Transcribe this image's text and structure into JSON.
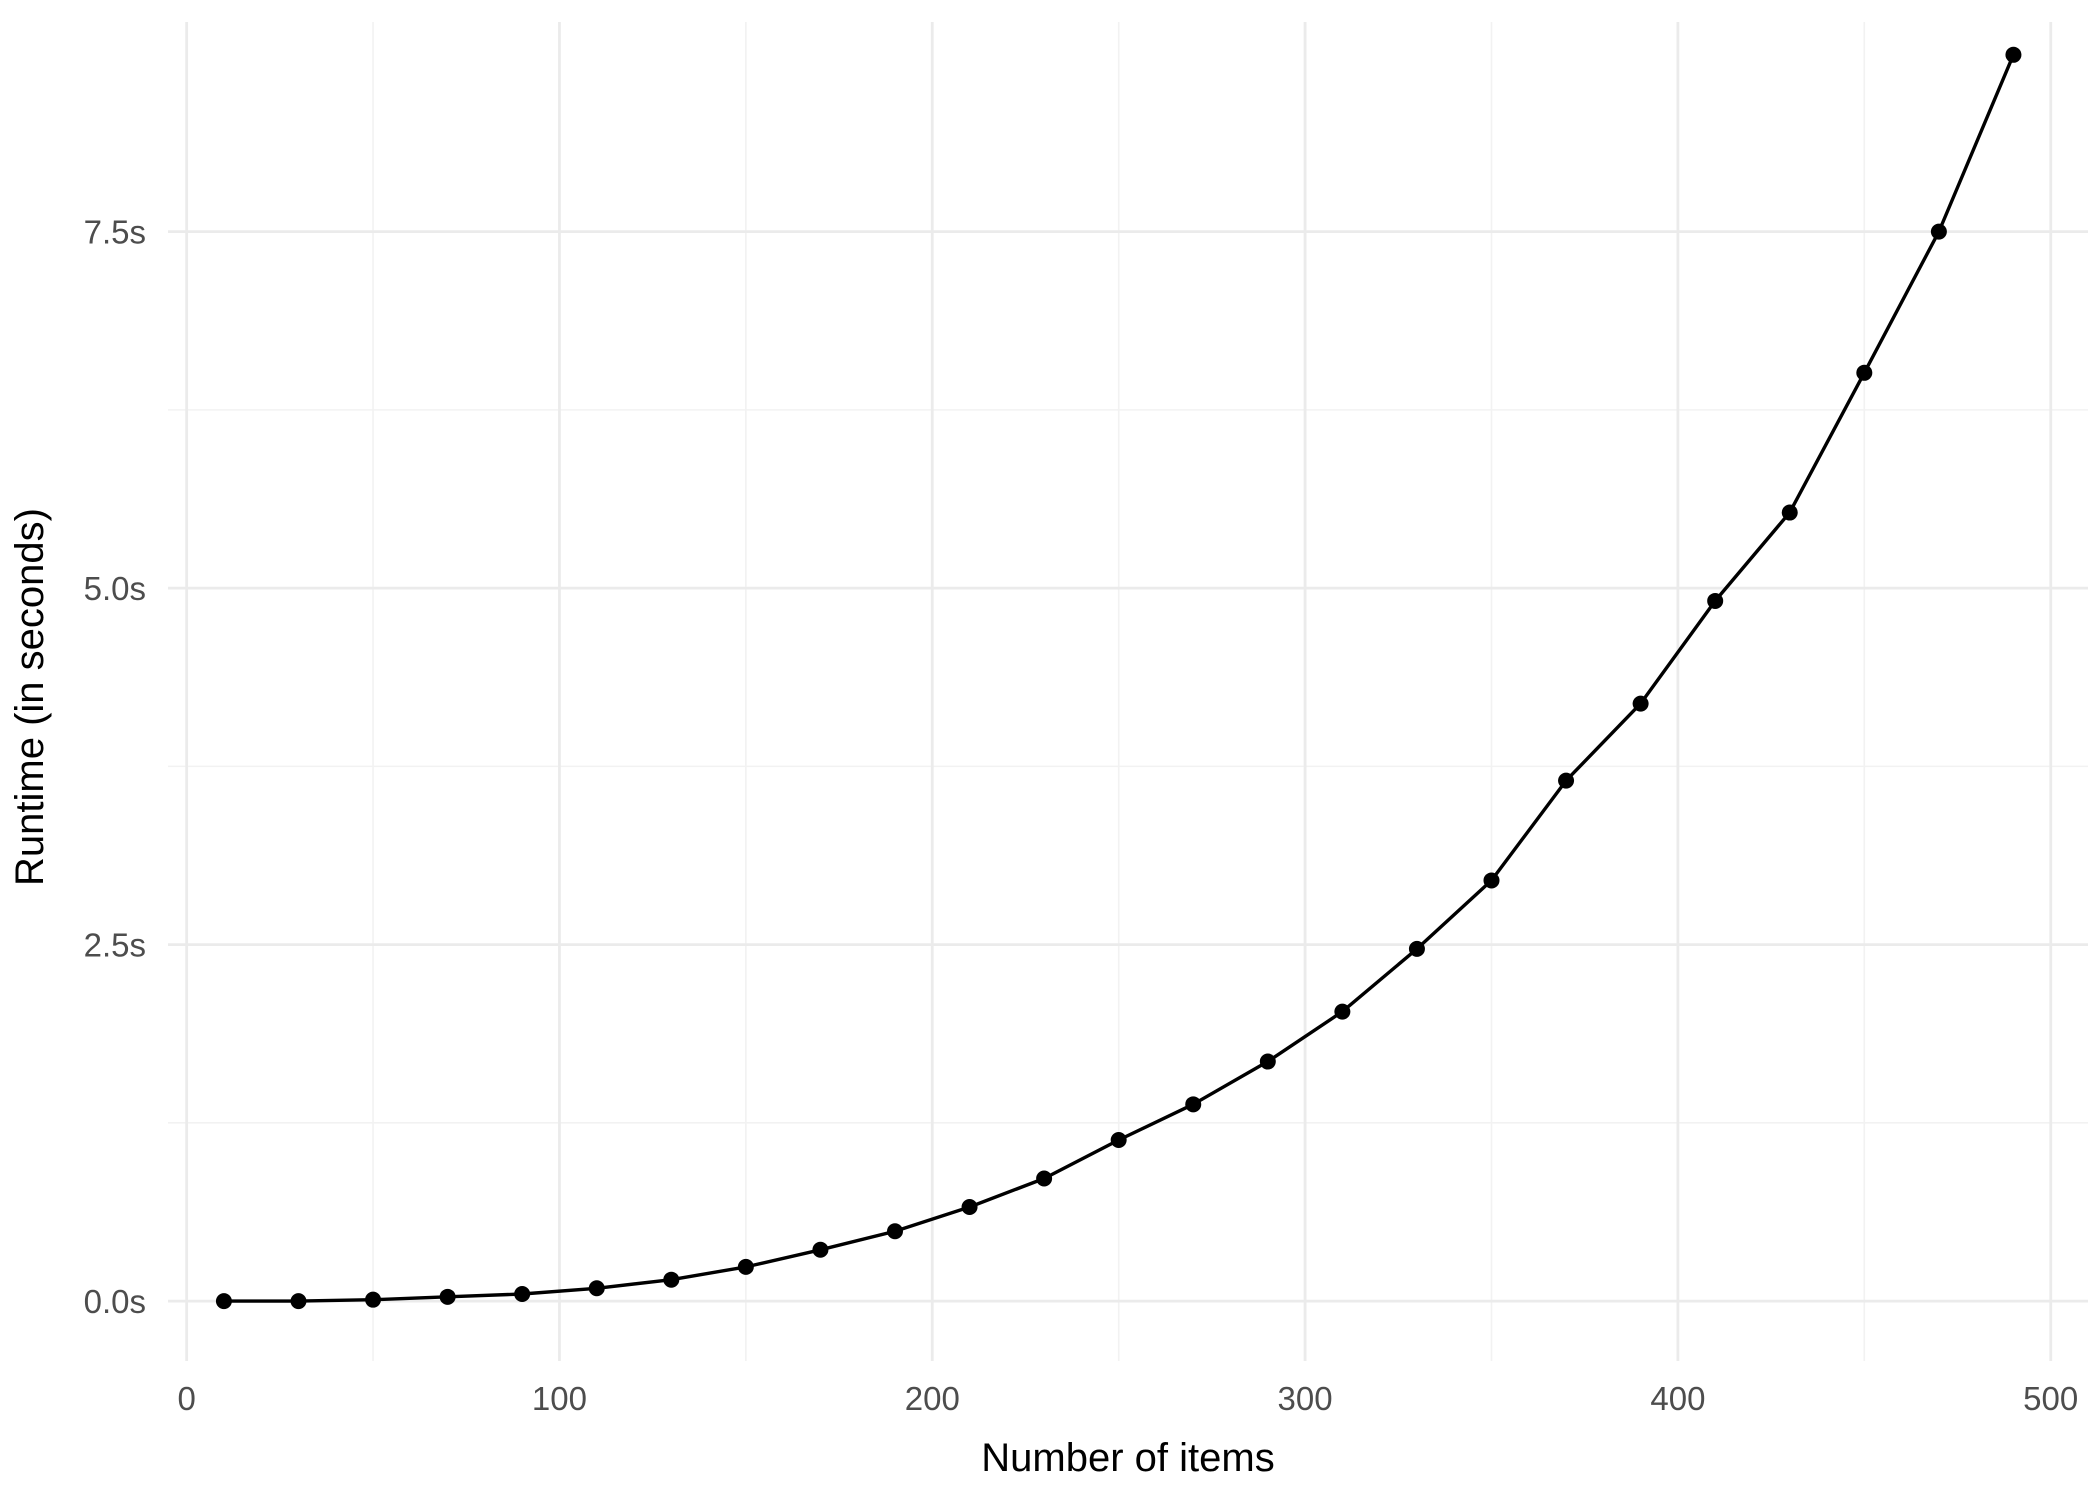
{
  "chart_data": {
    "type": "line",
    "title": "",
    "xlabel": "Number of items",
    "ylabel": "Runtime (in seconds)",
    "xlim": [
      -5,
      510
    ],
    "ylim": [
      -0.42,
      8.97
    ],
    "x_ticks": [
      0,
      100,
      200,
      300,
      400,
      500
    ],
    "x_tick_labels": [
      "0",
      "100",
      "200",
      "300",
      "400",
      "500"
    ],
    "y_ticks": [
      0,
      2.5,
      5,
      7.5
    ],
    "y_tick_labels": [
      "0.0s",
      "2.5s",
      "5.0s",
      "7.5s"
    ],
    "x_minor_ticks": [
      50,
      150,
      250,
      350,
      450
    ],
    "y_minor_ticks": [
      1.25,
      3.75,
      6.25
    ],
    "grid": true,
    "legend": "none",
    "series": [
      {
        "x": [
          10,
          30,
          50,
          70,
          90,
          110,
          130,
          150,
          170,
          190,
          210,
          230,
          250,
          270,
          290,
          310,
          330,
          350,
          370,
          390,
          410,
          430,
          450,
          470,
          490
        ],
        "y": [
          0.0,
          0.0,
          0.01,
          0.03,
          0.05,
          0.09,
          0.15,
          0.24,
          0.36,
          0.49,
          0.66,
          0.86,
          1.13,
          1.38,
          1.68,
          2.03,
          2.47,
          2.95,
          3.65,
          4.19,
          4.91,
          5.53,
          6.51,
          7.5,
          8.74
        ]
      }
    ],
    "colors": {
      "line": "#000000",
      "points": "#000000",
      "grid_major": "#EBEBEB",
      "grid_minor": "#F2F2F2",
      "tick_text": "#4D4D4D",
      "axis_title": "#000000",
      "background": "#FFFFFF"
    }
  }
}
